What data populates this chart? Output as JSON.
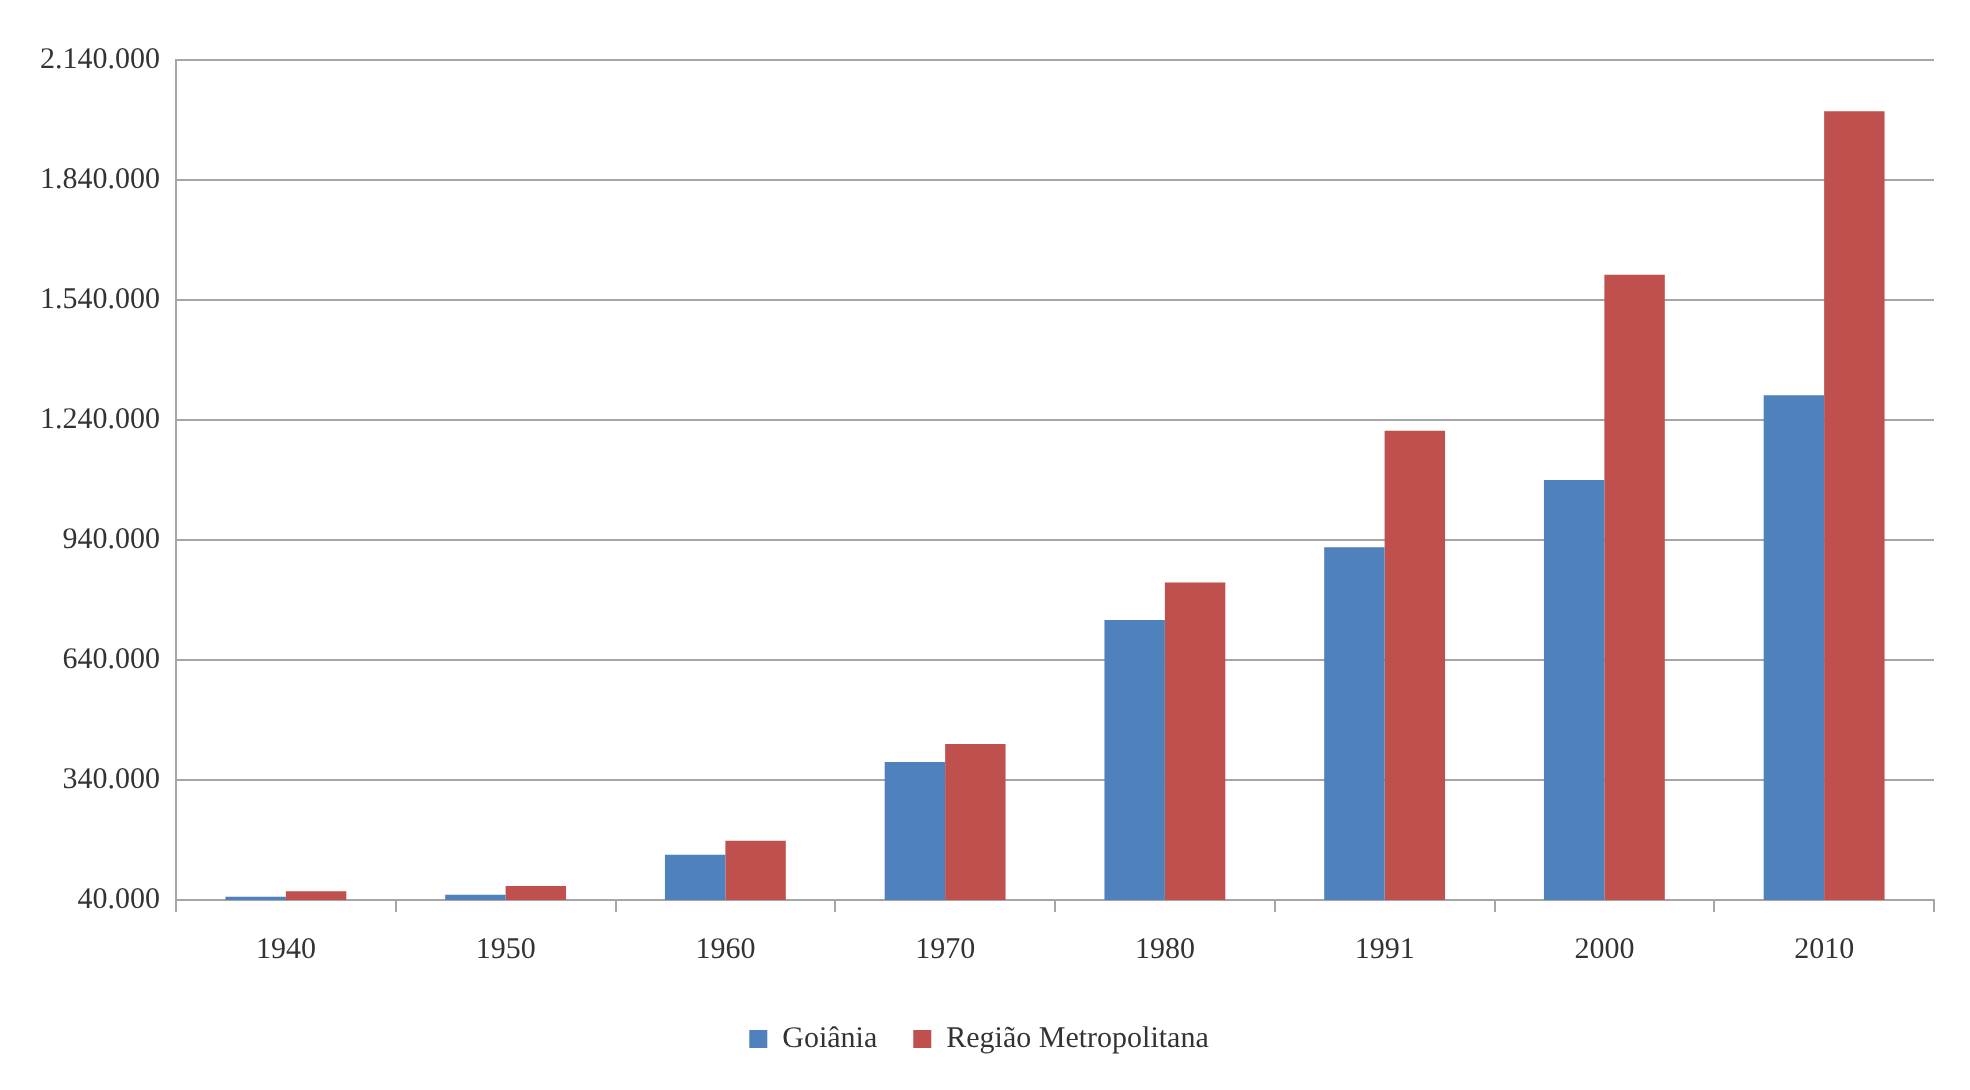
{
  "chart_data": {
    "type": "bar",
    "categories": [
      "1940",
      "1950",
      "1960",
      "1970",
      "1980",
      "1991",
      "2000",
      "2010"
    ],
    "series": [
      {
        "name": "Goiânia",
        "color": "#4f81bd",
        "values": [
          48000,
          53000,
          153000,
          385000,
          740000,
          922000,
          1090000,
          1302000
        ]
      },
      {
        "name": "Região Metropolitana",
        "color": "#c0504d",
        "values": [
          62000,
          75000,
          188000,
          430000,
          834000,
          1213000,
          1603000,
          2012000
        ]
      }
    ],
    "ylim": [
      40000,
      2140000
    ],
    "yticks": [
      {
        "value": 40000,
        "label": "40.000"
      },
      {
        "value": 340000,
        "label": "340.000"
      },
      {
        "value": 640000,
        "label": "640.000"
      },
      {
        "value": 940000,
        "label": "940.000"
      },
      {
        "value": 1240000,
        "label": "1.240.000"
      },
      {
        "value": 1540000,
        "label": "1.540.000"
      },
      {
        "value": 1840000,
        "label": "1.840.000"
      },
      {
        "value": 2140000,
        "label": "2.140.000"
      }
    ],
    "grid": "y",
    "legend": "bottom"
  }
}
